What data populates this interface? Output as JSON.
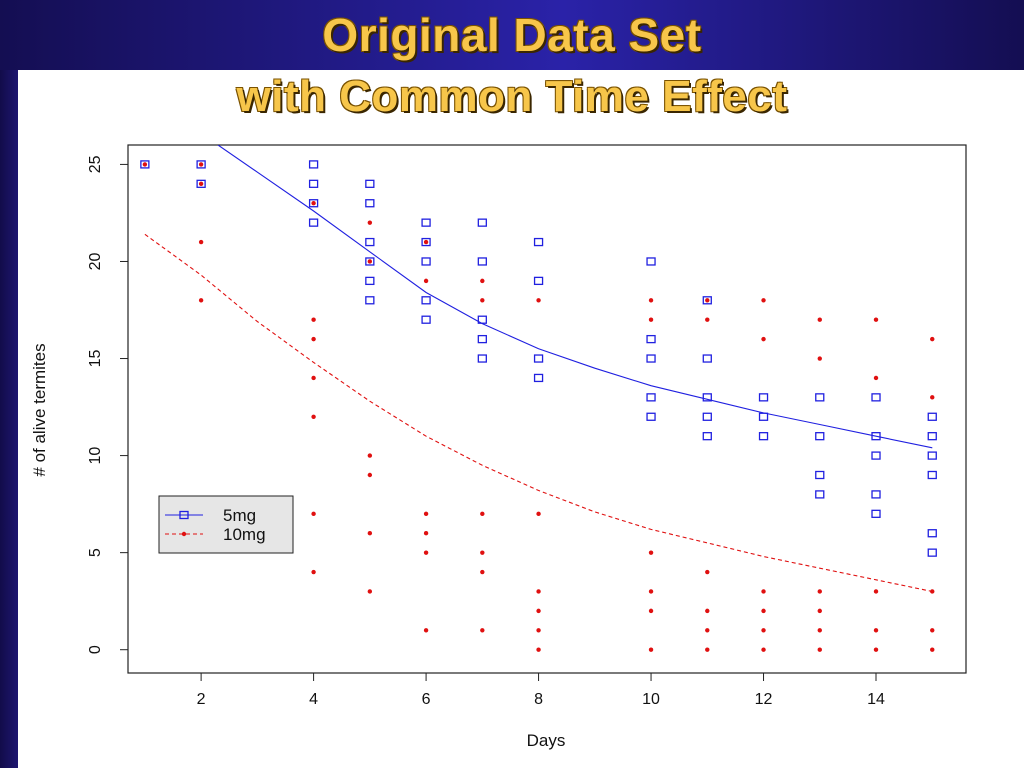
{
  "slide": {
    "title_line1": "Original Data Set",
    "title_line2": "with Common Time Effect",
    "accent_color": "#f7c64a"
  },
  "chart_data": {
    "type": "scatter",
    "title": "",
    "xlabel": "Days",
    "ylabel": "# of alive termites",
    "xlim": [
      0.7,
      15.6
    ],
    "ylim": [
      -1.2,
      26
    ],
    "xticks": [
      2,
      4,
      6,
      8,
      10,
      12,
      14
    ],
    "yticks": [
      0,
      5,
      10,
      15,
      20,
      25
    ],
    "grid": false,
    "legend_position": "bottom-left",
    "series": [
      {
        "name": "5mg",
        "color": "#2020e0",
        "marker": "square",
        "line": "solid",
        "points": [
          [
            1,
            25
          ],
          [
            2,
            25
          ],
          [
            2,
            24
          ],
          [
            4,
            25
          ],
          [
            4,
            24
          ],
          [
            4,
            23
          ],
          [
            4,
            22
          ],
          [
            5,
            24
          ],
          [
            5,
            23
          ],
          [
            5,
            21
          ],
          [
            5,
            20
          ],
          [
            5,
            19
          ],
          [
            5,
            18
          ],
          [
            6,
            22
          ],
          [
            6,
            21
          ],
          [
            6,
            20
          ],
          [
            6,
            18
          ],
          [
            6,
            17
          ],
          [
            7,
            22
          ],
          [
            7,
            20
          ],
          [
            7,
            17
          ],
          [
            7,
            16
          ],
          [
            7,
            15
          ],
          [
            8,
            21
          ],
          [
            8,
            19
          ],
          [
            8,
            15
          ],
          [
            8,
            14
          ],
          [
            10,
            20
          ],
          [
            10,
            16
          ],
          [
            10,
            15
          ],
          [
            10,
            13
          ],
          [
            10,
            12
          ],
          [
            11,
            18
          ],
          [
            11,
            15
          ],
          [
            11,
            13
          ],
          [
            11,
            12
          ],
          [
            11,
            11
          ],
          [
            12,
            13
          ],
          [
            12,
            12
          ],
          [
            12,
            11
          ],
          [
            13,
            13
          ],
          [
            13,
            11
          ],
          [
            13,
            9
          ],
          [
            13,
            8
          ],
          [
            14,
            13
          ],
          [
            14,
            11
          ],
          [
            14,
            10
          ],
          [
            14,
            8
          ],
          [
            14,
            7
          ],
          [
            15,
            12
          ],
          [
            15,
            11
          ],
          [
            15,
            10
          ],
          [
            15,
            9
          ],
          [
            15,
            6
          ],
          [
            15,
            5
          ]
        ],
        "fit": [
          [
            2.3,
            26
          ],
          [
            3,
            24.6
          ],
          [
            4,
            22.6
          ],
          [
            5,
            20.5
          ],
          [
            6,
            18.4
          ],
          [
            7,
            16.8
          ],
          [
            8,
            15.5
          ],
          [
            9,
            14.5
          ],
          [
            10,
            13.6
          ],
          [
            11,
            12.9
          ],
          [
            12,
            12.2
          ],
          [
            13,
            11.6
          ],
          [
            14,
            11.0
          ],
          [
            15,
            10.4
          ]
        ]
      },
      {
        "name": "10mg",
        "color": "#e01010",
        "marker": "dot",
        "line": "dashed",
        "points": [
          [
            1,
            25
          ],
          [
            2,
            25
          ],
          [
            2,
            24
          ],
          [
            2,
            21
          ],
          [
            2,
            18
          ],
          [
            4,
            23
          ],
          [
            4,
            17
          ],
          [
            4,
            16
          ],
          [
            4,
            14
          ],
          [
            4,
            12
          ],
          [
            4,
            7
          ],
          [
            4,
            4
          ],
          [
            5,
            22
          ],
          [
            5,
            20
          ],
          [
            5,
            10
          ],
          [
            5,
            9
          ],
          [
            5,
            6
          ],
          [
            5,
            3
          ],
          [
            6,
            21
          ],
          [
            6,
            19
          ],
          [
            6,
            7
          ],
          [
            6,
            6
          ],
          [
            6,
            5
          ],
          [
            6,
            1
          ],
          [
            7,
            19
          ],
          [
            7,
            18
          ],
          [
            7,
            7
          ],
          [
            7,
            5
          ],
          [
            7,
            4
          ],
          [
            7,
            1
          ],
          [
            8,
            18
          ],
          [
            8,
            7
          ],
          [
            8,
            3
          ],
          [
            8,
            2
          ],
          [
            8,
            1
          ],
          [
            8,
            0
          ],
          [
            10,
            18
          ],
          [
            10,
            17
          ],
          [
            10,
            5
          ],
          [
            10,
            3
          ],
          [
            10,
            2
          ],
          [
            10,
            0
          ],
          [
            11,
            18
          ],
          [
            11,
            17
          ],
          [
            11,
            4
          ],
          [
            11,
            2
          ],
          [
            11,
            1
          ],
          [
            11,
            0
          ],
          [
            12,
            18
          ],
          [
            12,
            16
          ],
          [
            12,
            3
          ],
          [
            12,
            2
          ],
          [
            12,
            1
          ],
          [
            12,
            0
          ],
          [
            13,
            17
          ],
          [
            13,
            15
          ],
          [
            13,
            3
          ],
          [
            13,
            2
          ],
          [
            13,
            1
          ],
          [
            13,
            0
          ],
          [
            14,
            17
          ],
          [
            14,
            14
          ],
          [
            14,
            3
          ],
          [
            14,
            1
          ],
          [
            14,
            0
          ],
          [
            15,
            16
          ],
          [
            15,
            13
          ],
          [
            15,
            3
          ],
          [
            15,
            1
          ],
          [
            15,
            0
          ]
        ],
        "fit": [
          [
            1,
            21.4
          ],
          [
            2,
            19.3
          ],
          [
            3,
            16.9
          ],
          [
            4,
            14.8
          ],
          [
            5,
            12.8
          ],
          [
            6,
            11.0
          ],
          [
            7,
            9.5
          ],
          [
            8,
            8.2
          ],
          [
            9,
            7.1
          ],
          [
            10,
            6.2
          ],
          [
            11,
            5.5
          ],
          [
            12,
            4.8
          ],
          [
            13,
            4.2
          ],
          [
            14,
            3.6
          ],
          [
            15,
            3.0
          ]
        ]
      }
    ]
  }
}
